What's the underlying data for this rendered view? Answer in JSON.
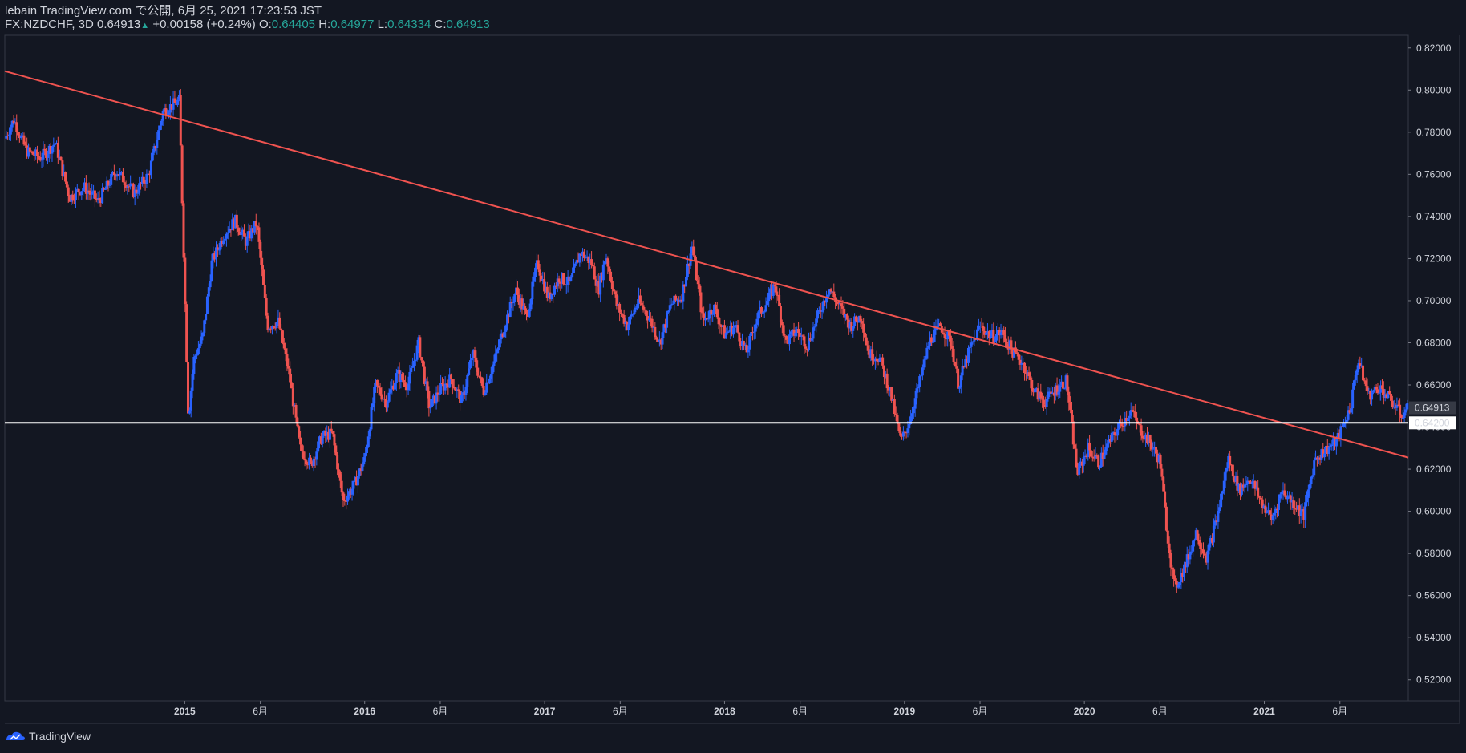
{
  "header": {
    "author": "lebain",
    "site": "TradingView.com",
    "published_text": "で公開,",
    "datetime": "6月 25, 2021 17:23:53 JST",
    "symbol": "FX:NZDCHF,",
    "timeframe": "3D",
    "last": "0.64913",
    "change": "+0.00158 (+0.24%)",
    "o_label": "O:",
    "o_value": "0.64405",
    "h_label": "H:",
    "h_value": "0.64977",
    "l_label": "L:",
    "l_value": "0.64334",
    "c_label": "C:",
    "c_value": "0.64913"
  },
  "footer": {
    "brand": "TradingView",
    "logo_icon": "tradingview-logo-icon"
  },
  "colors": {
    "background": "#131722",
    "up": "#2962ff",
    "down": "#ef5350",
    "trendline": "#f05350",
    "support": "#ffffff",
    "text": "#d1d4dc"
  },
  "chart_data": {
    "type": "candlestick",
    "symbol": "FX:NZDCHF",
    "timeframe": "3D",
    "ylim": [
      0.51,
      0.826
    ],
    "y_ticks": [
      0.82,
      0.8,
      0.78,
      0.76,
      0.74,
      0.72,
      0.7,
      0.68,
      0.66,
      0.64,
      0.62,
      0.6,
      0.58,
      0.56,
      0.54,
      0.52
    ],
    "y_tick_labels": [
      "0.82000",
      "0.80000",
      "0.78000",
      "0.76000",
      "0.74000",
      "0.72000",
      "0.70000",
      "0.68000",
      "0.66000",
      "0.64000",
      "0.62000",
      "0.60000",
      "0.58000",
      "0.56000",
      "0.54000",
      "0.52000"
    ],
    "x_range": [
      2014.0,
      2021.8
    ],
    "x_ticks": [
      {
        "label": "2015",
        "t": 2015.0,
        "bold": true
      },
      {
        "label": "6月",
        "t": 2015.42,
        "bold": false
      },
      {
        "label": "2016",
        "t": 2016.0,
        "bold": true
      },
      {
        "label": "6月",
        "t": 2016.42,
        "bold": false
      },
      {
        "label": "2017",
        "t": 2017.0,
        "bold": true
      },
      {
        "label": "6月",
        "t": 2017.42,
        "bold": false
      },
      {
        "label": "2018",
        "t": 2018.0,
        "bold": true
      },
      {
        "label": "6月",
        "t": 2018.42,
        "bold": false
      },
      {
        "label": "2019",
        "t": 2019.0,
        "bold": true
      },
      {
        "label": "6月",
        "t": 2019.42,
        "bold": false
      },
      {
        "label": "2020",
        "t": 2020.0,
        "bold": true
      },
      {
        "label": "6月",
        "t": 2020.42,
        "bold": false
      },
      {
        "label": "2021",
        "t": 2021.0,
        "bold": true
      },
      {
        "label": "6月",
        "t": 2021.42,
        "bold": false
      }
    ],
    "price_path": [
      [
        2014.0,
        0.777
      ],
      [
        2014.05,
        0.786
      ],
      [
        2014.12,
        0.771
      ],
      [
        2014.2,
        0.768
      ],
      [
        2014.28,
        0.775
      ],
      [
        2014.36,
        0.749
      ],
      [
        2014.44,
        0.754
      ],
      [
        2014.52,
        0.747
      ],
      [
        2014.62,
        0.762
      ],
      [
        2014.72,
        0.751
      ],
      [
        2014.8,
        0.76
      ],
      [
        2014.88,
        0.79
      ],
      [
        2014.97,
        0.795
      ],
      [
        2015.02,
        0.644
      ],
      [
        2015.05,
        0.672
      ],
      [
        2015.1,
        0.683
      ],
      [
        2015.15,
        0.718
      ],
      [
        2015.22,
        0.732
      ],
      [
        2015.28,
        0.738
      ],
      [
        2015.34,
        0.728
      ],
      [
        2015.4,
        0.737
      ],
      [
        2015.46,
        0.688
      ],
      [
        2015.52,
        0.69
      ],
      [
        2015.58,
        0.665
      ],
      [
        2015.64,
        0.63
      ],
      [
        2015.7,
        0.622
      ],
      [
        2015.76,
        0.635
      ],
      [
        2015.82,
        0.637
      ],
      [
        2015.88,
        0.605
      ],
      [
        2015.94,
        0.612
      ],
      [
        2016.0,
        0.625
      ],
      [
        2016.06,
        0.66
      ],
      [
        2016.12,
        0.652
      ],
      [
        2016.18,
        0.665
      ],
      [
        2016.24,
        0.66
      ],
      [
        2016.3,
        0.68
      ],
      [
        2016.36,
        0.649
      ],
      [
        2016.42,
        0.658
      ],
      [
        2016.48,
        0.663
      ],
      [
        2016.54,
        0.652
      ],
      [
        2016.6,
        0.675
      ],
      [
        2016.66,
        0.657
      ],
      [
        2016.72,
        0.671
      ],
      [
        2016.78,
        0.689
      ],
      [
        2016.84,
        0.705
      ],
      [
        2016.9,
        0.692
      ],
      [
        2016.96,
        0.718
      ],
      [
        2017.02,
        0.701
      ],
      [
        2017.08,
        0.711
      ],
      [
        2017.14,
        0.708
      ],
      [
        2017.2,
        0.723
      ],
      [
        2017.26,
        0.718
      ],
      [
        2017.3,
        0.705
      ],
      [
        2017.34,
        0.722
      ],
      [
        2017.4,
        0.698
      ],
      [
        2017.46,
        0.688
      ],
      [
        2017.52,
        0.7
      ],
      [
        2017.58,
        0.692
      ],
      [
        2017.64,
        0.68
      ],
      [
        2017.7,
        0.698
      ],
      [
        2017.76,
        0.702
      ],
      [
        2017.82,
        0.726
      ],
      [
        2017.88,
        0.69
      ],
      [
        2017.94,
        0.697
      ],
      [
        2018.0,
        0.684
      ],
      [
        2018.06,
        0.688
      ],
      [
        2018.12,
        0.675
      ],
      [
        2018.18,
        0.692
      ],
      [
        2018.24,
        0.7
      ],
      [
        2018.28,
        0.708
      ],
      [
        2018.34,
        0.68
      ],
      [
        2018.4,
        0.686
      ],
      [
        2018.46,
        0.679
      ],
      [
        2018.52,
        0.693
      ],
      [
        2018.58,
        0.706
      ],
      [
        2018.64,
        0.697
      ],
      [
        2018.7,
        0.688
      ],
      [
        2018.76,
        0.693
      ],
      [
        2018.8,
        0.675
      ],
      [
        2018.86,
        0.673
      ],
      [
        2018.92,
        0.657
      ],
      [
        2018.98,
        0.633
      ],
      [
        2019.02,
        0.641
      ],
      [
        2019.08,
        0.66
      ],
      [
        2019.14,
        0.681
      ],
      [
        2019.2,
        0.688
      ],
      [
        2019.26,
        0.68
      ],
      [
        2019.3,
        0.66
      ],
      [
        2019.36,
        0.676
      ],
      [
        2019.42,
        0.688
      ],
      [
        2019.48,
        0.683
      ],
      [
        2019.54,
        0.685
      ],
      [
        2019.6,
        0.676
      ],
      [
        2019.66,
        0.67
      ],
      [
        2019.72,
        0.657
      ],
      [
        2019.78,
        0.652
      ],
      [
        2019.84,
        0.658
      ],
      [
        2019.9,
        0.662
      ],
      [
        2019.96,
        0.618
      ],
      [
        2020.02,
        0.63
      ],
      [
        2020.08,
        0.623
      ],
      [
        2020.14,
        0.633
      ],
      [
        2020.2,
        0.641
      ],
      [
        2020.26,
        0.648
      ],
      [
        2020.3,
        0.64
      ],
      [
        2020.36,
        0.633
      ],
      [
        2020.42,
        0.624
      ],
      [
        2020.46,
        0.59
      ],
      [
        2020.5,
        0.563
      ],
      [
        2020.56,
        0.574
      ],
      [
        2020.62,
        0.59
      ],
      [
        2020.68,
        0.578
      ],
      [
        2020.74,
        0.598
      ],
      [
        2020.8,
        0.625
      ],
      [
        2020.86,
        0.61
      ],
      [
        2020.92,
        0.616
      ],
      [
        2020.98,
        0.605
      ],
      [
        2021.04,
        0.596
      ],
      [
        2021.1,
        0.61
      ],
      [
        2021.16,
        0.604
      ],
      [
        2021.22,
        0.598
      ],
      [
        2021.28,
        0.625
      ],
      [
        2021.34,
        0.629
      ],
      [
        2021.4,
        0.633
      ],
      [
        2021.44,
        0.641
      ],
      [
        2021.48,
        0.65
      ],
      [
        2021.52,
        0.672
      ],
      [
        2021.58,
        0.655
      ],
      [
        2021.64,
        0.659
      ],
      [
        2021.7,
        0.653
      ],
      [
        2021.76,
        0.646
      ],
      [
        2021.8,
        0.649
      ]
    ],
    "trendline": {
      "x0": 2014.0,
      "y0": 0.809,
      "x1": 2021.8,
      "y1": 0.6255
    },
    "support_line": {
      "y": 0.642,
      "label": "0.64200"
    },
    "last_price": {
      "y": 0.64913,
      "label": "0.64913"
    }
  }
}
